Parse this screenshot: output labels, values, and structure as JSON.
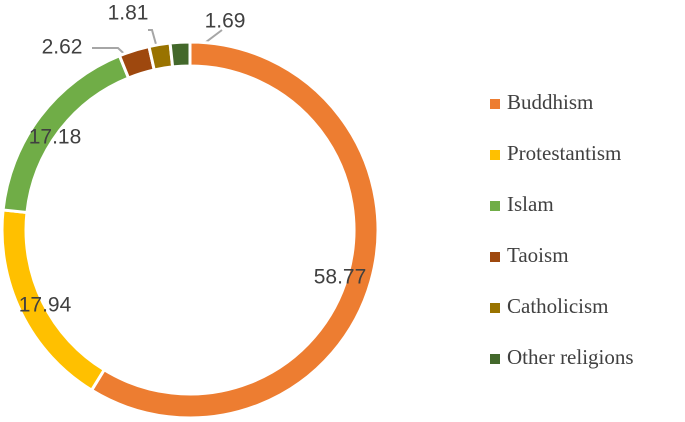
{
  "chart_data": {
    "type": "donut",
    "categories": [
      "Buddhism",
      "Protestantism",
      "Islam",
      "Taoism",
      "Catholicism",
      "Other religions"
    ],
    "values": [
      58.77,
      17.94,
      17.18,
      2.62,
      1.81,
      1.69
    ],
    "colors": [
      "#ED7D31",
      "#FFC000",
      "#70AD47",
      "#9E480E",
      "#997300",
      "#43682B"
    ],
    "legend": "right"
  }
}
